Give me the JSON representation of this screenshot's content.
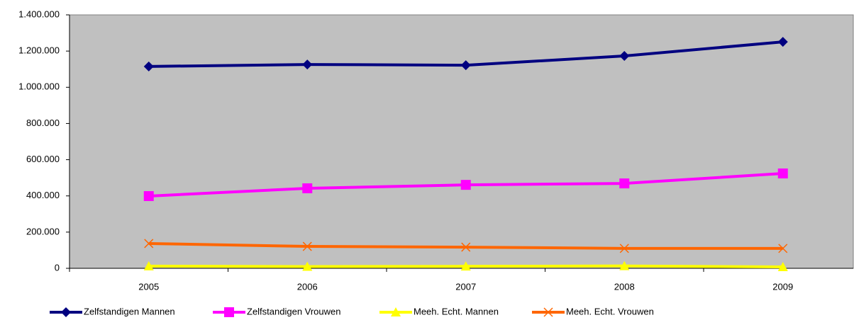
{
  "chart_data": {
    "type": "line",
    "categories": [
      "2005",
      "2006",
      "2007",
      "2008",
      "2009"
    ],
    "series": [
      {
        "name": "Zelfstandigen Mannen",
        "color": "#000080",
        "marker": "diamond",
        "values": [
          1115000,
          1126000,
          1122000,
          1173000,
          1251000
        ]
      },
      {
        "name": "Zelfstandigen Vrouwen",
        "color": "#ff00ff",
        "marker": "square",
        "values": [
          399000,
          442000,
          461000,
          469000,
          524000
        ]
      },
      {
        "name": "Meeh. Echt. Mannen",
        "color": "#ffff00",
        "marker": "triangle",
        "values": [
          12000,
          10000,
          11000,
          13000,
          8000
        ]
      },
      {
        "name": "Meeh. Echt. Vrouwen",
        "color": "#ff6600",
        "marker": "x",
        "values": [
          137000,
          121000,
          117000,
          110000,
          110000
        ]
      }
    ],
    "ylim": [
      0,
      1400000
    ],
    "yticks": [
      0,
      {
        "value": 200000,
        "label": "200.000"
      },
      {
        "value": 400000,
        "label": "400.000"
      },
      {
        "value": 600000,
        "label": "600.000"
      },
      {
        "value": 800000,
        "label": "800.000"
      },
      {
        "value": 1000000,
        "label": "1.000.000"
      },
      {
        "value": 1200000,
        "label": "1.200.000"
      },
      {
        "value": 1400000,
        "label": "1.400.000"
      }
    ],
    "legend": "bottom"
  }
}
